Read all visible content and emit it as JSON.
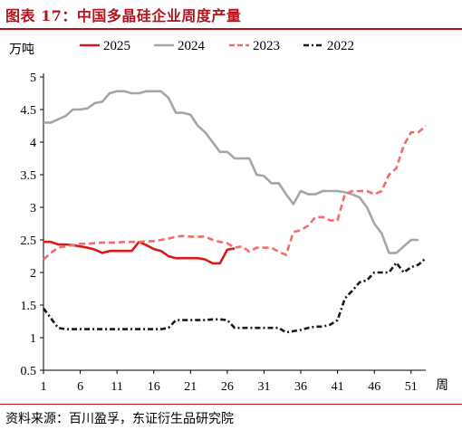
{
  "header": {
    "title": "图表 17：中国多晶硅企业周度产量"
  },
  "footer": {
    "source": "资料来源：百川盈孚，东证衍生品研究院"
  },
  "chart_data": {
    "type": "line",
    "title": "",
    "ylabel": "万吨",
    "xlabel": "周",
    "xlim": [
      1,
      53
    ],
    "ylim": [
      0.5,
      5
    ],
    "xticks": [
      1,
      6,
      11,
      16,
      21,
      26,
      31,
      36,
      41,
      46,
      51
    ],
    "yticks": [
      0.5,
      1,
      1.5,
      2,
      2.5,
      3,
      3.5,
      4,
      4.5,
      5
    ],
    "grid": false,
    "legend": "top",
    "series": [
      {
        "name": "2025",
        "color": "#d7191c",
        "style": "solid",
        "x": [
          1,
          2,
          3,
          4,
          5,
          6,
          7,
          8,
          9,
          10,
          11,
          12,
          13,
          14,
          15,
          16,
          17,
          18,
          19,
          20,
          21,
          22,
          23,
          24,
          25,
          26,
          27
        ],
        "y": [
          2.47,
          2.47,
          2.43,
          2.43,
          2.42,
          2.4,
          2.38,
          2.35,
          2.3,
          2.33,
          2.33,
          2.33,
          2.33,
          2.47,
          2.42,
          2.36,
          2.33,
          2.25,
          2.22,
          2.22,
          2.22,
          2.22,
          2.2,
          2.14,
          2.14,
          2.35,
          2.37
        ]
      },
      {
        "name": "2024",
        "color": "#a6a6a6",
        "style": "solid",
        "x": [
          1,
          2,
          3,
          4,
          5,
          6,
          7,
          8,
          9,
          10,
          11,
          12,
          13,
          14,
          15,
          16,
          17,
          18,
          19,
          20,
          21,
          22,
          23,
          24,
          25,
          26,
          27,
          28,
          29,
          30,
          31,
          32,
          33,
          34,
          35,
          36,
          37,
          38,
          39,
          40,
          41,
          42,
          43,
          44,
          45,
          46,
          47,
          48,
          49,
          50,
          51,
          52
        ],
        "y": [
          4.3,
          4.3,
          4.35,
          4.4,
          4.5,
          4.5,
          4.52,
          4.6,
          4.62,
          4.75,
          4.78,
          4.78,
          4.75,
          4.75,
          4.78,
          4.78,
          4.78,
          4.68,
          4.45,
          4.45,
          4.42,
          4.25,
          4.15,
          4.0,
          3.85,
          3.85,
          3.75,
          3.75,
          3.75,
          3.5,
          3.48,
          3.37,
          3.37,
          3.2,
          3.05,
          3.25,
          3.2,
          3.2,
          3.25,
          3.25,
          3.25,
          3.23,
          3.2,
          3.15,
          3.0,
          2.75,
          2.6,
          2.3,
          2.3,
          2.4,
          2.5,
          2.5
        ]
      },
      {
        "name": "2023",
        "color": "#f26c6c",
        "style": "dashed",
        "x": [
          1,
          2,
          3,
          4,
          5,
          6,
          7,
          8,
          9,
          10,
          11,
          12,
          13,
          14,
          15,
          16,
          17,
          18,
          19,
          20,
          21,
          22,
          23,
          24,
          25,
          26,
          27,
          28,
          29,
          30,
          31,
          32,
          33,
          34,
          35,
          36,
          37,
          38,
          39,
          40,
          41,
          42,
          43,
          44,
          45,
          46,
          47,
          48,
          49,
          50,
          51,
          52,
          53
        ],
        "y": [
          2.2,
          2.3,
          2.38,
          2.4,
          2.42,
          2.44,
          2.44,
          2.45,
          2.46,
          2.46,
          2.46,
          2.47,
          2.47,
          2.47,
          2.48,
          2.48,
          2.5,
          2.52,
          2.55,
          2.56,
          2.55,
          2.55,
          2.55,
          2.5,
          2.47,
          2.45,
          2.38,
          2.4,
          2.32,
          2.38,
          2.38,
          2.38,
          2.32,
          2.27,
          2.62,
          2.65,
          2.72,
          2.85,
          2.85,
          2.8,
          2.8,
          3.2,
          3.25,
          3.25,
          3.25,
          3.2,
          3.25,
          3.5,
          3.6,
          3.95,
          4.15,
          4.15,
          4.25
        ]
      },
      {
        "name": "2022",
        "color": "#1a1a1a",
        "style": "dashdot",
        "x": [
          1,
          2,
          3,
          4,
          5,
          6,
          7,
          8,
          9,
          10,
          11,
          12,
          13,
          14,
          15,
          16,
          17,
          18,
          19,
          20,
          21,
          22,
          23,
          24,
          25,
          26,
          27,
          28,
          29,
          30,
          31,
          32,
          33,
          34,
          35,
          36,
          37,
          38,
          39,
          40,
          41,
          42,
          43,
          44,
          45,
          46,
          47,
          48,
          49,
          50,
          51,
          52,
          53
        ],
        "y": [
          1.45,
          1.3,
          1.15,
          1.13,
          1.13,
          1.13,
          1.13,
          1.13,
          1.13,
          1.13,
          1.13,
          1.13,
          1.13,
          1.13,
          1.13,
          1.13,
          1.13,
          1.15,
          1.27,
          1.27,
          1.27,
          1.27,
          1.27,
          1.28,
          1.28,
          1.27,
          1.15,
          1.15,
          1.15,
          1.15,
          1.15,
          1.15,
          1.15,
          1.08,
          1.1,
          1.12,
          1.15,
          1.17,
          1.17,
          1.2,
          1.27,
          1.6,
          1.72,
          1.85,
          1.88,
          2.0,
          2.0,
          2.0,
          2.15,
          2.0,
          2.08,
          2.12,
          2.22
        ]
      }
    ]
  }
}
